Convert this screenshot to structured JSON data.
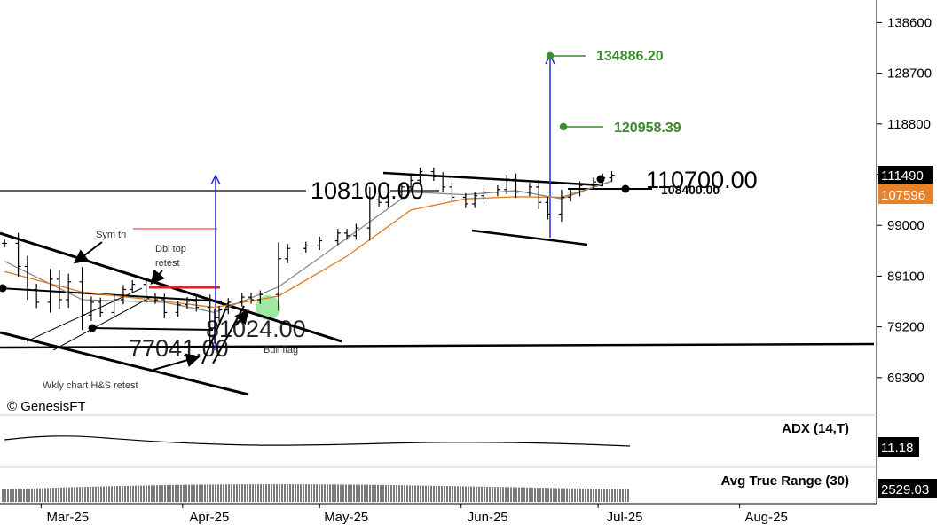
{
  "watermark": "© GenesisFT",
  "colors": {
    "price": "#000000",
    "ma_fast": "#8a8a8a",
    "ma_slow": "#e07b1a",
    "target": "#3b8a2e",
    "projection": "#2b2bd8",
    "resistance": "#e0202a",
    "highlight": "#7fe07f",
    "last_price_bg": "#000000",
    "ma_value_bg": "#e8822a"
  },
  "chart_data": [
    {
      "type": "line",
      "subtype": "ohlc-bars",
      "title": "",
      "y_axis_side": "right",
      "ylim": [
        62000,
        143000
      ],
      "y_ticks": [
        138600,
        128700,
        118800,
        109000,
        99000,
        89100,
        79200,
        69300
      ],
      "y_tick_labels": [
        "138600",
        "128700",
        "118800",
        "",
        "99000",
        "89100",
        "79200",
        "69300"
      ],
      "x_labels": [
        "Mar-25",
        "Apr-25",
        "May-25",
        "Jun-25",
        "Jul-25",
        "Aug-25"
      ],
      "x_dates": [
        "2025-03-01",
        "2025-04-01",
        "2025-05-01",
        "2025-06-01",
        "2025-07-01",
        "2025-08-01"
      ],
      "xlim": [
        "2025-02-20",
        "2025-08-31"
      ],
      "series": [
        {
          "role": "price",
          "dates": [
            "2025-02-21",
            "2025-02-24",
            "2025-02-26",
            "2025-02-28",
            "2025-03-03",
            "2025-03-05",
            "2025-03-07",
            "2025-03-10",
            "2025-03-12",
            "2025-03-14",
            "2025-03-17",
            "2025-03-19",
            "2025-03-21",
            "2025-03-24",
            "2025-03-26",
            "2025-03-28",
            "2025-03-31",
            "2025-04-02",
            "2025-04-04",
            "2025-04-07",
            "2025-04-08",
            "2025-04-09",
            "2025-04-11",
            "2025-04-14",
            "2025-04-16",
            "2025-04-18",
            "2025-04-22",
            "2025-04-24",
            "2025-04-28",
            "2025-05-01",
            "2025-05-05",
            "2025-05-07",
            "2025-05-09",
            "2025-05-12",
            "2025-05-14",
            "2025-05-16",
            "2025-05-19",
            "2025-05-21",
            "2025-05-23",
            "2025-05-26",
            "2025-05-28",
            "2025-05-30",
            "2025-06-02",
            "2025-06-04",
            "2025-06-06",
            "2025-06-09",
            "2025-06-11",
            "2025-06-13",
            "2025-06-16",
            "2025-06-18",
            "2025-06-20",
            "2025-06-23",
            "2025-06-25",
            "2025-06-27",
            "2025-06-30",
            "2025-07-02",
            "2025-07-04"
          ],
          "close": [
            95500,
            91000,
            86500,
            84000,
            88500,
            84500,
            88000,
            81500,
            84000,
            82000,
            84500,
            86500,
            87500,
            85000,
            84500,
            82000,
            83500,
            84200,
            83000,
            77500,
            81000,
            82500,
            84000,
            85000,
            84500,
            85500,
            92500,
            94500,
            95000,
            96000,
            97500,
            97000,
            98500,
            104000,
            103500,
            105500,
            106500,
            107800,
            109500,
            108500,
            106500,
            104500,
            103200,
            104800,
            105500,
            106000,
            108000,
            105500,
            106500,
            103500,
            101200,
            104500,
            105500,
            106800,
            107500,
            108300,
            108800
          ]
        },
        {
          "role": "ma_fast",
          "dates": [
            "2025-02-21",
            "2025-03-10",
            "2025-03-28",
            "2025-04-08",
            "2025-04-22",
            "2025-05-07",
            "2025-05-21",
            "2025-06-02",
            "2025-06-13",
            "2025-06-23",
            "2025-07-04"
          ],
          "values": [
            92000,
            84500,
            84000,
            82000,
            87000,
            96500,
            105500,
            105000,
            105800,
            104200,
            107700
          ]
        },
        {
          "role": "ma_slow",
          "dates": [
            "2025-02-21",
            "2025-03-10",
            "2025-03-28",
            "2025-04-08",
            "2025-04-22",
            "2025-05-07",
            "2025-05-21",
            "2025-06-02",
            "2025-06-13",
            "2025-06-23",
            "2025-07-04"
          ],
          "values": [
            90000,
            86000,
            84200,
            83000,
            85200,
            93000,
            102000,
            104200,
            104600,
            104500,
            107596
          ]
        }
      ],
      "last_price": "111490",
      "ma_value": "107596",
      "annotations": [
        {
          "text": "108100.00"
        },
        {
          "text": "110700.00"
        },
        {
          "text": "108400.00"
        },
        {
          "text": "134886.20"
        },
        {
          "text": "120958.39"
        },
        {
          "text": "77041.00"
        },
        {
          "text": "81024.00"
        },
        {
          "text": "Sym tri"
        },
        {
          "text": "Dbl top"
        },
        {
          "text": "retest"
        },
        {
          "text": "Bull flag"
        },
        {
          "text": "Wkly chart H&S retest"
        }
      ]
    },
    {
      "type": "line",
      "title": "ADX (14,T)",
      "last_value": "11.18"
    },
    {
      "type": "bar",
      "title": "Avg True Range (30)",
      "last_value": "2529.03"
    }
  ]
}
